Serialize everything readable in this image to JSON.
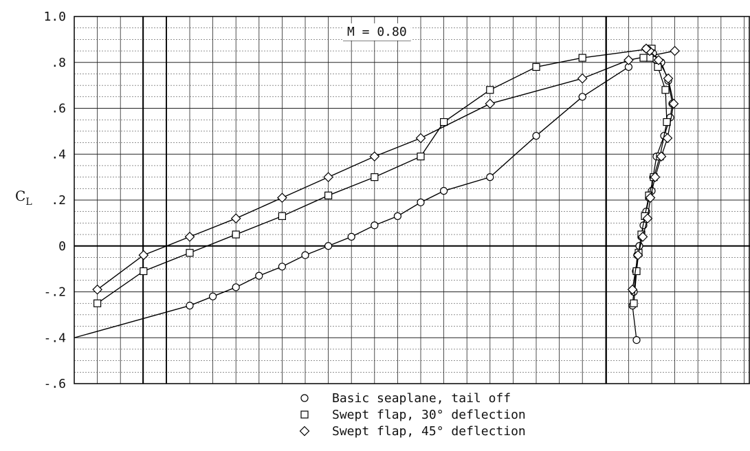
{
  "chart_data": {
    "type": "line",
    "ylabel": "C",
    "ylabel_sub": "L",
    "annotation": "M = 0.80",
    "ylim": [
      -0.6,
      1.0
    ],
    "y_ticks": [
      {
        "value": 1.0,
        "label": "1.0"
      },
      {
        "value": 0.8,
        "label": ".8"
      },
      {
        "value": 0.6,
        "label": ".6"
      },
      {
        "value": 0.4,
        "label": ".4"
      },
      {
        "value": 0.2,
        "label": ".2"
      },
      {
        "value": 0.0,
        "label": "0"
      },
      {
        "value": -0.2,
        "label": "-.2"
      },
      {
        "value": -0.4,
        "label": "-.4"
      },
      {
        "value": -0.6,
        "label": "-.6"
      }
    ],
    "grid": true,
    "legend_position": "bottom-center",
    "left_panel_series": [
      {
        "name": "Basic seaplane, tail off",
        "marker": "circle",
        "x": [
          1,
          2,
          3,
          4,
          5,
          6,
          7,
          8,
          9,
          10,
          11,
          12,
          14,
          16,
          18,
          20
        ],
        "y": [
          -0.26,
          -0.22,
          -0.18,
          -0.13,
          -0.09,
          -0.04,
          0.0,
          0.04,
          0.09,
          0.13,
          0.19,
          0.24,
          0.3,
          0.48,
          0.65,
          0.78
        ]
      },
      {
        "name": "Swept flap, 30° deflection",
        "marker": "square",
        "x": [
          -3,
          -1,
          1,
          3,
          5,
          7,
          9,
          11,
          12,
          14,
          16,
          18,
          21
        ],
        "y": [
          -0.25,
          -0.11,
          -0.03,
          0.05,
          0.13,
          0.22,
          0.3,
          0.39,
          0.54,
          0.68,
          0.78,
          0.82,
          0.86
        ],
        "x_note": "not printed"
      },
      {
        "name": "Swept flap, 45° deflection",
        "marker": "diamond",
        "x": [
          -3,
          -1,
          1,
          3,
          5,
          7,
          9,
          11,
          14,
          18,
          20,
          22
        ],
        "y": [
          -0.19,
          -0.04,
          0.04,
          0.12,
          0.21,
          0.3,
          0.39,
          0.47,
          0.62,
          0.73,
          0.81,
          0.85
        ]
      }
    ]
  },
  "legend": {
    "items": [
      {
        "symbol": "circle",
        "label": "Basic seaplane, tail off"
      },
      {
        "symbol": "square",
        "label": "Swept flap, 30° deflection"
      },
      {
        "symbol": "diamond",
        "label": "Swept flap, 45° deflection"
      }
    ]
  }
}
